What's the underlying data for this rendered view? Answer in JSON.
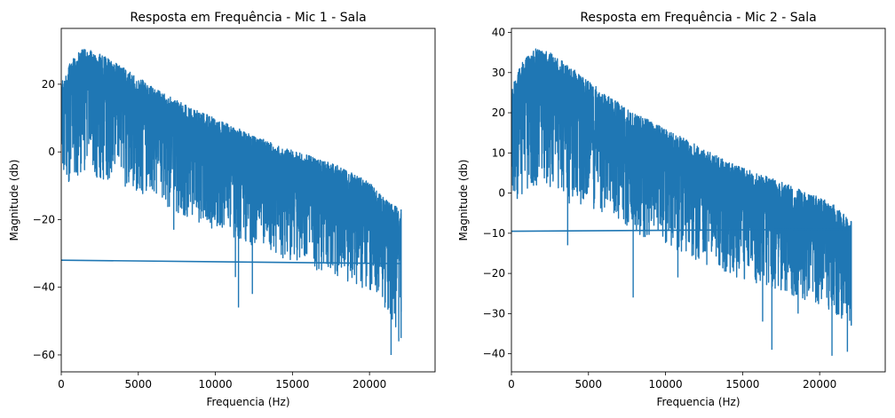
{
  "chart_data": [
    {
      "type": "line",
      "title": "Resposta em Frequência - Mic 1 - Sala",
      "xlabel": "Frequencia (Hz)",
      "ylabel": "Magnitude (db)",
      "xlim": [
        0,
        24255
      ],
      "ylim": [
        -65,
        36.5
      ],
      "xticks": [
        0,
        5000,
        10000,
        15000,
        20000
      ],
      "yticks": [
        -60,
        -40,
        -20,
        0,
        20
      ],
      "color": "#1f77b4",
      "series": [
        {
          "name": "",
          "x": [
            0,
            600,
            1500,
            2500,
            4000,
            6000,
            8000,
            10000,
            12000,
            14000,
            16000,
            18000,
            20000,
            21000,
            22050
          ],
          "upper": [
            20,
            27,
            31,
            29,
            25,
            19,
            14,
            10,
            6,
            2,
            -1,
            -4,
            -9,
            -14,
            -17
          ],
          "lower": [
            -12,
            -8,
            -6,
            -8,
            -10,
            -14,
            -19,
            -23,
            -27,
            -31,
            -34,
            -37,
            -41,
            -45,
            -55
          ],
          "mid": [
            16,
            19,
            21,
            18,
            13,
            7,
            2,
            -3,
            -8,
            -12,
            -15,
            -18,
            -22,
            -25,
            -29
          ]
        },
        {
          "name": "",
          "x": [
            0,
            22050
          ],
          "y": [
            -32,
            -33
          ]
        }
      ],
      "spikes": [
        {
          "x": 11500,
          "y": -46
        },
        {
          "x": 11300,
          "y": -37
        },
        {
          "x": 7300,
          "y": -23
        },
        {
          "x": 12400,
          "y": -42
        },
        {
          "x": 21400,
          "y": -60
        },
        {
          "x": 21000,
          "y": -46
        },
        {
          "x": 21900,
          "y": -56
        },
        {
          "x": 22000,
          "y": -43
        }
      ]
    },
    {
      "type": "line",
      "title": "Resposta em Frequência - Mic 2 - Sala",
      "xlabel": "Frequencia (Hz)",
      "ylabel": "Magnitude (db)",
      "xlim": [
        0,
        24255
      ],
      "ylim": [
        -44.5,
        41
      ],
      "xticks": [
        0,
        5000,
        10000,
        15000,
        20000
      ],
      "yticks": [
        -40,
        -30,
        -20,
        -10,
        0,
        10,
        20,
        30,
        40
      ],
      "color": "#1f77b4",
      "series": [
        {
          "name": "",
          "x": [
            0,
            600,
            1500,
            2500,
            4000,
            6000,
            8000,
            10000,
            12000,
            14000,
            16000,
            18000,
            20000,
            21000,
            22050
          ],
          "upper": [
            26,
            32,
            36,
            35,
            31,
            25,
            20,
            16,
            12,
            8,
            5,
            2,
            -1,
            -3,
            -7
          ],
          "lower": [
            -2,
            -1,
            2,
            0,
            -3,
            -6,
            -10,
            -13,
            -17,
            -20,
            -23,
            -25,
            -28,
            -30,
            -33
          ],
          "mid": [
            20,
            24,
            25,
            23,
            18,
            13,
            8,
            4,
            0,
            -3,
            -6,
            -9,
            -12,
            -14,
            -17
          ]
        },
        {
          "name": "",
          "x": [
            0,
            22050
          ],
          "y": [
            -9.5,
            -9
          ]
        }
      ],
      "spikes": [
        {
          "x": 3650,
          "y": -13
        },
        {
          "x": 7900,
          "y": -26
        },
        {
          "x": 10800,
          "y": -21
        },
        {
          "x": 16900,
          "y": -39
        },
        {
          "x": 16300,
          "y": -32
        },
        {
          "x": 20800,
          "y": -40.5
        },
        {
          "x": 21800,
          "y": -39.5
        },
        {
          "x": 18600,
          "y": -30
        }
      ]
    }
  ]
}
